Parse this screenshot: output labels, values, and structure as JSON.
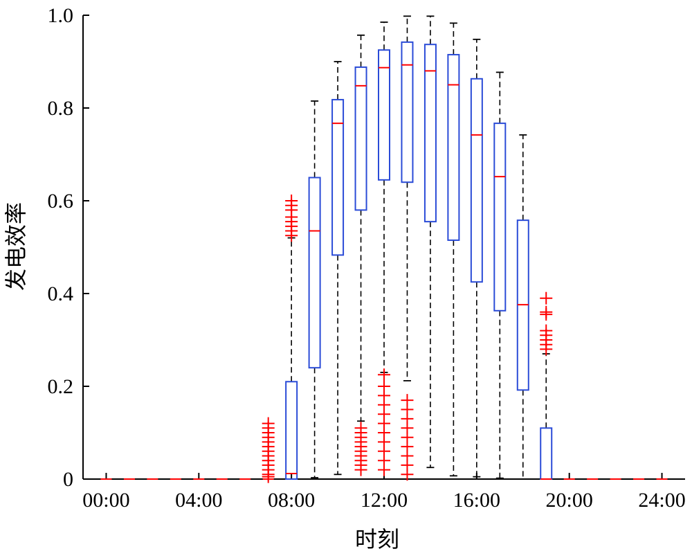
{
  "chart_data": {
    "type": "boxplot",
    "xlabel": "时刻",
    "ylabel": "发电效率",
    "ylim": [
      0,
      1.0
    ],
    "xlim_hours": [
      -1,
      25
    ],
    "x_ticks": [
      "00:00",
      "04:00",
      "08:00",
      "12:00",
      "16:00",
      "20:00",
      "24:00"
    ],
    "x_tick_hours": [
      0,
      4,
      8,
      12,
      16,
      20,
      24
    ],
    "y_ticks": [
      "0",
      "0.2",
      "0.4",
      "0.6",
      "0.8",
      "1.0"
    ],
    "y_tick_values": [
      0,
      0.2,
      0.4,
      0.6,
      0.8,
      1.0
    ],
    "grid": false,
    "colors": {
      "box": "#2a4bd7",
      "median": "#ff0000",
      "outlier": "#ff0000",
      "whisker": "#000000"
    },
    "boxes": [
      {
        "time": "00:00",
        "q1": 0,
        "median": 0,
        "q3": 0,
        "whisker_low": 0,
        "whisker_high": 0,
        "outliers": []
      },
      {
        "time": "01:00",
        "q1": 0,
        "median": 0,
        "q3": 0,
        "whisker_low": 0,
        "whisker_high": 0,
        "outliers": []
      },
      {
        "time": "02:00",
        "q1": 0,
        "median": 0,
        "q3": 0,
        "whisker_low": 0,
        "whisker_high": 0,
        "outliers": []
      },
      {
        "time": "03:00",
        "q1": 0,
        "median": 0,
        "q3": 0,
        "whisker_low": 0,
        "whisker_high": 0,
        "outliers": []
      },
      {
        "time": "04:00",
        "q1": 0,
        "median": 0,
        "q3": 0,
        "whisker_low": 0,
        "whisker_high": 0,
        "outliers": []
      },
      {
        "time": "05:00",
        "q1": 0,
        "median": 0,
        "q3": 0,
        "whisker_low": 0,
        "whisker_high": 0,
        "outliers": []
      },
      {
        "time": "06:00",
        "q1": 0,
        "median": 0,
        "q3": 0,
        "whisker_low": 0,
        "whisker_high": 0,
        "outliers": []
      },
      {
        "time": "07:00",
        "q1": 0,
        "median": 0,
        "q3": 0,
        "whisker_low": 0,
        "whisker_high": 0,
        "outliers": [
          0.005,
          0.01,
          0.02,
          0.03,
          0.04,
          0.05,
          0.06,
          0.07,
          0.08,
          0.09,
          0.1,
          0.11,
          0.12
        ]
      },
      {
        "time": "08:00",
        "q1": 0,
        "median": 0.012,
        "q3": 0.21,
        "whisker_low": 0,
        "whisker_high": 0.52,
        "outliers": [
          0.525,
          0.535,
          0.545,
          0.555,
          0.565,
          0.58,
          0.59,
          0.6
        ]
      },
      {
        "time": "09:00",
        "q1": 0.24,
        "median": 0.535,
        "q3": 0.65,
        "whisker_low": 0.003,
        "whisker_high": 0.815,
        "outliers": []
      },
      {
        "time": "10:00",
        "q1": 0.483,
        "median": 0.767,
        "q3": 0.818,
        "whisker_low": 0.01,
        "whisker_high": 0.9,
        "outliers": []
      },
      {
        "time": "11:00",
        "q1": 0.58,
        "median": 0.848,
        "q3": 0.888,
        "whisker_low": 0.125,
        "whisker_high": 0.957,
        "outliers": [
          0.02,
          0.03,
          0.04,
          0.05,
          0.06,
          0.07,
          0.08,
          0.09,
          0.1,
          0.11
        ]
      },
      {
        "time": "12:00",
        "q1": 0.645,
        "median": 0.887,
        "q3": 0.925,
        "whisker_low": 0.23,
        "whisker_high": 0.985,
        "outliers": [
          0.02,
          0.04,
          0.06,
          0.08,
          0.1,
          0.12,
          0.14,
          0.16,
          0.18,
          0.2,
          0.225
        ]
      },
      {
        "time": "13:00",
        "q1": 0.64,
        "median": 0.893,
        "q3": 0.942,
        "whisker_low": 0.212,
        "whisker_high": 0.998,
        "outliers": [
          0.01,
          0.03,
          0.05,
          0.07,
          0.09,
          0.11,
          0.13,
          0.15,
          0.17
        ]
      },
      {
        "time": "14:00",
        "q1": 0.555,
        "median": 0.88,
        "q3": 0.937,
        "whisker_low": 0.025,
        "whisker_high": 0.998,
        "outliers": []
      },
      {
        "time": "15:00",
        "q1": 0.515,
        "median": 0.85,
        "q3": 0.915,
        "whisker_low": 0.007,
        "whisker_high": 0.983,
        "outliers": []
      },
      {
        "time": "16:00",
        "q1": 0.425,
        "median": 0.742,
        "q3": 0.863,
        "whisker_low": 0.005,
        "whisker_high": 0.948,
        "outliers": []
      },
      {
        "time": "17:00",
        "q1": 0.363,
        "median": 0.652,
        "q3": 0.767,
        "whisker_low": 0.002,
        "whisker_high": 0.877,
        "outliers": []
      },
      {
        "time": "18:00",
        "q1": 0.192,
        "median": 0.376,
        "q3": 0.558,
        "whisker_low": 0,
        "whisker_high": 0.742,
        "outliers": []
      },
      {
        "time": "19:00",
        "q1": 0,
        "median": 0,
        "q3": 0.11,
        "whisker_low": 0,
        "whisker_high": 0.27,
        "outliers": [
          0.28,
          0.29,
          0.3,
          0.31,
          0.32,
          0.355,
          0.36,
          0.39
        ]
      },
      {
        "time": "20:00",
        "q1": 0,
        "median": 0,
        "q3": 0,
        "whisker_low": 0,
        "whisker_high": 0,
        "outliers": []
      },
      {
        "time": "21:00",
        "q1": 0,
        "median": 0,
        "q3": 0,
        "whisker_low": 0,
        "whisker_high": 0,
        "outliers": []
      },
      {
        "time": "22:00",
        "q1": 0,
        "median": 0,
        "q3": 0,
        "whisker_low": 0,
        "whisker_high": 0,
        "outliers": []
      },
      {
        "time": "23:00",
        "q1": 0,
        "median": 0,
        "q3": 0,
        "whisker_low": 0,
        "whisker_high": 0,
        "outliers": []
      },
      {
        "time": "24:00",
        "q1": 0,
        "median": 0,
        "q3": 0,
        "whisker_low": 0,
        "whisker_high": 0,
        "outliers": []
      }
    ]
  }
}
